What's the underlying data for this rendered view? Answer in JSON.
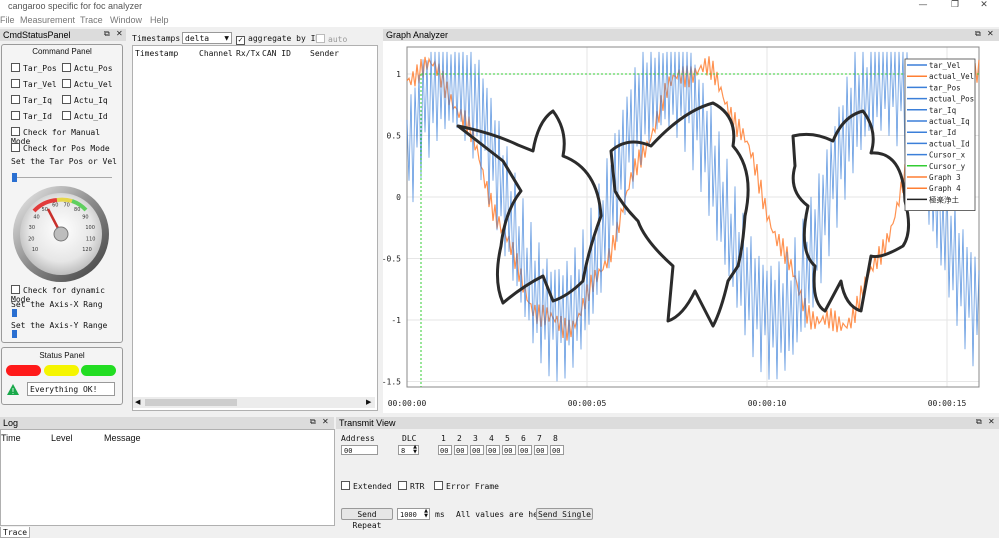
{
  "window": {
    "title": "cangaroo specific for foc analyzer",
    "min": "—",
    "max": "❐",
    "close": "✕"
  },
  "menu": [
    "File",
    "Measurement",
    "Trace",
    "Window",
    "Help"
  ],
  "cmd_panel": {
    "title": "CmdStatusPanel",
    "group_title": "Command Panel",
    "checks_left": [
      "Tar_Pos",
      "Tar_Vel",
      "Tar_Iq",
      "Tar_Id"
    ],
    "checks_right": [
      "Actu_Pos",
      "Actu_Vel",
      "Actu_Iq",
      "Actu_Id"
    ],
    "manual_mode": "Check for Manual Mode",
    "pos_mode": "Check  for  Pos  Mode",
    "set_tar": "Set the Tar   Pos or Vel",
    "gauge_ticks": [
      "10",
      "20",
      "30",
      "40",
      "50",
      "60",
      "70",
      "80",
      "90",
      "100",
      "110",
      "120"
    ],
    "dynamic_mode": "Check for dynamic Mode",
    "axis_x": "Set   the  Axis-X   Rang",
    "axis_y": "Set   the  Axis-Y   Range",
    "status_title": "Status Panel",
    "status_colors": [
      "#ff1a1a",
      "#f5f500",
      "#22dd22"
    ],
    "status_text": "Everything OK!"
  },
  "trace": {
    "timestamps_label": "Timestamps:",
    "timestamps_value": "delta",
    "aggregate_label": "aggregate by ID",
    "aggregate_checked": true,
    "autoscroll_label": "auto scroll",
    "columns": [
      "Timestamp",
      "Channel",
      "Rx/Tx",
      "CAN ID",
      "Sender"
    ]
  },
  "graph": {
    "title": "Graph Analyzer",
    "y_ticks": [
      "1",
      "0.5",
      "0",
      "-0.5",
      "-1",
      "-1.5"
    ],
    "x_ticks": [
      "00:00:00",
      "00:00:05",
      "00:00:10",
      "00:00:15"
    ],
    "legend": [
      {
        "name": "tar_Vel",
        "color": "#3b7fd9"
      },
      {
        "name": "actual_Vel",
        "color": "#ff7f33"
      },
      {
        "name": "tar_Pos",
        "color": "#3b7fd9"
      },
      {
        "name": "actual_Pos",
        "color": "#3b7fd9"
      },
      {
        "name": "tar_Iq",
        "color": "#3b7fd9"
      },
      {
        "name": "actual_Iq",
        "color": "#3b7fd9"
      },
      {
        "name": "tar_Id",
        "color": "#3b7fd9"
      },
      {
        "name": "actual_Id",
        "color": "#3b7fd9"
      },
      {
        "name": "Cursor_x",
        "color": "#3b7fd9"
      },
      {
        "name": "Cursor_y",
        "color": "#33cc33"
      },
      {
        "name": "Graph 3",
        "color": "#ff7f33"
      },
      {
        "name": "Graph 4",
        "color": "#ff7f33"
      },
      {
        "name": "極楽浄土",
        "color": "#222222"
      }
    ]
  },
  "log": {
    "title": "Log",
    "columns": [
      "Time",
      "Level",
      "Message"
    ]
  },
  "transmit": {
    "title": "Transmit View",
    "address_label": "Address",
    "address_value": "00",
    "dlc_label": "DLC",
    "dlc_value": "8",
    "byte_labels": [
      "1",
      "2",
      "3",
      "4",
      "5",
      "6",
      "7",
      "8"
    ],
    "byte_values": [
      "00",
      "00",
      "00",
      "00",
      "00",
      "00",
      "00",
      "00"
    ],
    "extended": "Extended",
    "rtr": "RTR",
    "error_frame": "Error Frame",
    "send_repeat": "Send Repeat",
    "repeat_value": "1000",
    "ms": "ms",
    "hex_note": "All values are hex",
    "send_single": "Send Single"
  },
  "bottom_tab": "Trace",
  "colors": {
    "blue": "#3b7fd9",
    "orange": "#ff7f33",
    "green": "#33cc33"
  }
}
